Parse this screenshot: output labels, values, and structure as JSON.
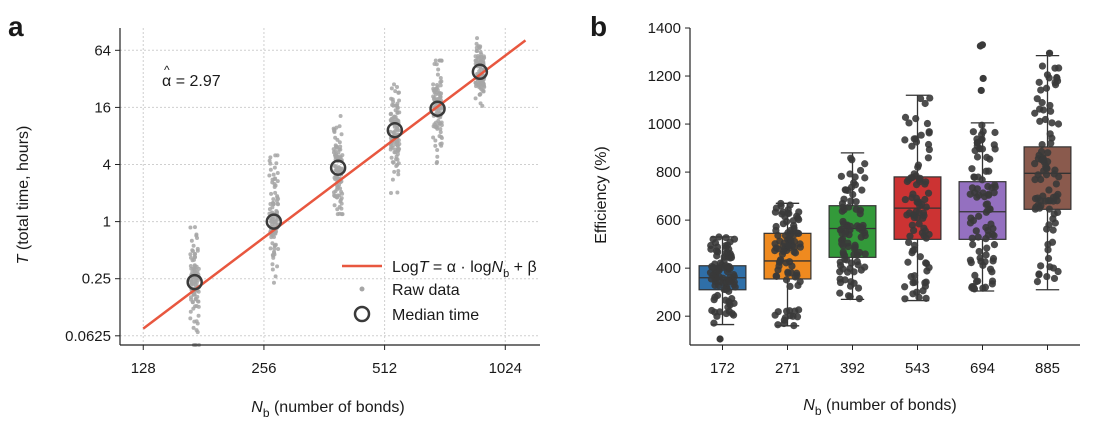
{
  "panels": {
    "a": {
      "label": "a"
    },
    "b": {
      "label": "b"
    }
  },
  "chart_data": [
    {
      "type": "scatter",
      "panel": "a",
      "x_scale": "log2",
      "y_scale": "log2",
      "xlim": [
        112,
        1250
      ],
      "ylim": [
        0.05,
        110
      ],
      "x_ticks": [
        128,
        256,
        512,
        1024
      ],
      "x_tick_labels": [
        "128",
        "256",
        "512",
        "1024"
      ],
      "y_ticks": [
        0.0625,
        0.25,
        1,
        4,
        16,
        64
      ],
      "y_tick_labels": [
        "0.0625",
        "0.25",
        "1",
        "4",
        "16",
        "64"
      ],
      "xlabel": {
        "main": "N",
        "sub": "b",
        "rest": " (number of bonds)"
      },
      "ylabel": {
        "main": "T",
        "rest": " (total time, hours)"
      },
      "grid": true,
      "annotation": {
        "hat": "^",
        "symbol": "α",
        "rest": " = 2.97"
      },
      "median_time": {
        "x": [
          172,
          271,
          392,
          543,
          694,
          885
        ],
        "y": [
          0.23,
          1.0,
          3.7,
          9.2,
          15.5,
          38
        ]
      },
      "fit_line": {
        "x": [
          128,
          1150
        ],
        "y": [
          0.0745,
          81.5
        ]
      },
      "raw_data_groups": [
        {
          "x": 172,
          "y_min": 0.05,
          "y_max": 1.2,
          "y_median": 0.23
        },
        {
          "x": 271,
          "y_min": 0.17,
          "y_max": 5.0,
          "y_median": 1.0
        },
        {
          "x": 392,
          "y_min": 1.2,
          "y_max": 20,
          "y_median": 3.7
        },
        {
          "x": 543,
          "y_min": 2.0,
          "y_max": 28,
          "y_median": 9.2
        },
        {
          "x": 694,
          "y_min": 3.0,
          "y_max": 50,
          "y_median": 15.5
        },
        {
          "x": 885,
          "y_min": 12,
          "y_max": 96,
          "y_median": 38
        }
      ],
      "legend": {
        "placement": "lower-right",
        "entries": [
          {
            "kind": "line",
            "label": {
              "pre": "Log",
              "main": "T",
              "mid": " = α · log",
              "main2": "N",
              "sub": "b",
              "post": " + β"
            }
          },
          {
            "kind": "dot",
            "label": {
              "pre": "Raw data"
            }
          },
          {
            "kind": "circle",
            "label": {
              "pre": "Median time"
            }
          }
        ]
      },
      "colors": {
        "fit": "#e8573f",
        "raw": "#a6a6a6",
        "median": "#3a3a3a"
      }
    },
    {
      "type": "box",
      "panel": "b",
      "categories": [
        "172",
        "271",
        "392",
        "543",
        "694",
        "885"
      ],
      "ylim": [
        80,
        1400
      ],
      "y_ticks": [
        200,
        400,
        600,
        800,
        1000,
        1200,
        1400
      ],
      "y_tick_labels": [
        "200",
        "400",
        "600",
        "800",
        "1000",
        "1200",
        "1400"
      ],
      "xlabel": {
        "main": "N",
        "sub": "b",
        "rest": " (number of bonds)"
      },
      "ylabel": {
        "main": "Efficiency (%)"
      },
      "grid": false,
      "boxes": [
        {
          "category": "172",
          "whisker_low": 165,
          "q1": 310,
          "median": 360,
          "q3": 410,
          "whisker_high": 530,
          "outliers": [
            105
          ],
          "color": "#2f6fa8"
        },
        {
          "category": "271",
          "whisker_low": 160,
          "q1": 355,
          "median": 430,
          "q3": 545,
          "whisker_high": 670,
          "outliers": [],
          "color": "#ef8a1f"
        },
        {
          "category": "392",
          "whisker_low": 270,
          "q1": 445,
          "median": 565,
          "q3": 660,
          "whisker_high": 880,
          "outliers": [],
          "color": "#339a3a"
        },
        {
          "category": "543",
          "whisker_low": 265,
          "q1": 520,
          "median": 650,
          "q3": 780,
          "whisker_high": 1120,
          "outliers": [],
          "color": "#cc3333"
        },
        {
          "category": "694",
          "whisker_low": 305,
          "q1": 520,
          "median": 635,
          "q3": 760,
          "whisker_high": 1005,
          "outliers": [
            1140,
            1190,
            1325,
            1330
          ],
          "color": "#9470c0"
        },
        {
          "category": "885",
          "whisker_low": 310,
          "q1": 645,
          "median": 795,
          "q3": 905,
          "whisker_high": 1285,
          "outliers": [
            1295
          ],
          "color": "#8a5a4d"
        }
      ],
      "point_color": "#3a3a3a"
    }
  ]
}
